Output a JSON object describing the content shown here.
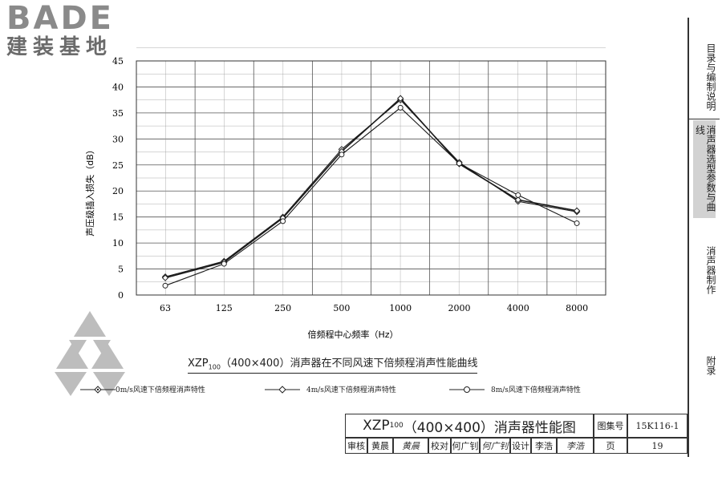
{
  "logo": {
    "brand": "BADE",
    "subtitle": "建装基地"
  },
  "sidebar": {
    "items": [
      {
        "label": "目录与编制说明",
        "active": false
      },
      {
        "label": "消声器选型参数与曲线",
        "active": true
      },
      {
        "label": "消声器制作",
        "active": false
      },
      {
        "label": "附录",
        "active": false
      }
    ]
  },
  "chart_title": {
    "main": "XZP",
    "sub": "100",
    "rest": "（400×400）消声器在不同风速下倍频程消声性能曲线"
  },
  "chart_data": {
    "type": "line",
    "categories": [
      "63",
      "125",
      "250",
      "500",
      "1000",
      "2000",
      "4000",
      "8000"
    ],
    "xlabel": "倍频程中心频率（Hz）",
    "ylabel": "声压级插入损失（dB）",
    "ylim": [
      0,
      45
    ],
    "yticks": [
      "0",
      "5",
      "10",
      "15",
      "20",
      "25",
      "30",
      "35",
      "40",
      "45"
    ],
    "grid": true,
    "legend_position": "bottom",
    "series": [
      {
        "name": "0m/s风速下倍频程消声特性",
        "marker": "diamond-dot",
        "values": [
          3.5,
          6.5,
          15.0,
          28.0,
          37.5,
          25.5,
          18.0,
          16.0
        ]
      },
      {
        "name": "4m/s风速下倍频程消声特性",
        "marker": "diamond",
        "values": [
          3.3,
          6.3,
          14.8,
          27.6,
          37.8,
          25.2,
          18.3,
          16.2
        ]
      },
      {
        "name": "8m/s风速下倍频程消声特性",
        "marker": "circle",
        "values": [
          1.8,
          6.0,
          14.2,
          27.0,
          36.0,
          25.3,
          19.2,
          13.8
        ]
      }
    ]
  },
  "title_block": {
    "title_main": "XZP",
    "title_sub": "100",
    "title_rest": "（400×400）消声器性能图",
    "atlas_label": "图集号",
    "atlas_value": "15K116-1",
    "review_label": "审核",
    "review_name": "黄晨",
    "review_sig": "黄晨",
    "check_label": "校对",
    "check_name": "何广钊",
    "check_sig": "何广钊",
    "design_label": "设计",
    "design_name": "李浩",
    "design_sig": "李浩",
    "page_label": "页",
    "page_value": "19"
  }
}
